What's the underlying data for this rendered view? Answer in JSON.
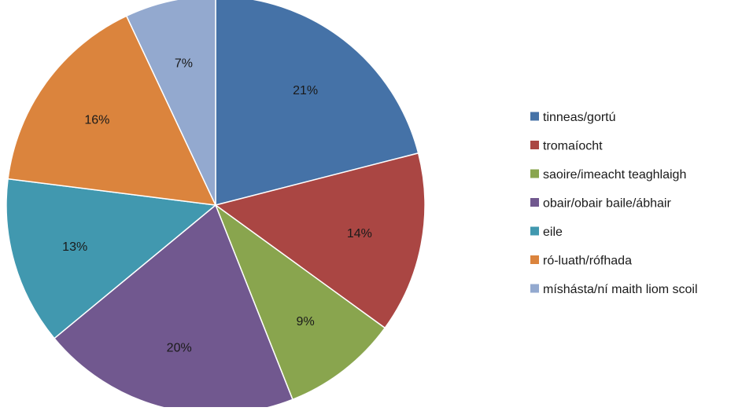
{
  "chart_data": {
    "type": "pie",
    "title": "",
    "legend_position": "right",
    "slices": [
      {
        "label": "tinneas/gortú",
        "value": 21,
        "value_label": "21%",
        "color": "#4572A7"
      },
      {
        "label": "tromaíocht",
        "value": 14,
        "value_label": "14%",
        "color": "#AA4643"
      },
      {
        "label": "saoire/imeacht teaghlaigh",
        "value": 9,
        "value_label": "9%",
        "color": "#89A54E"
      },
      {
        "label": "obair/obair baile/ábhair",
        "value": 20,
        "value_label": "20%",
        "color": "#71588F"
      },
      {
        "label": "eile",
        "value": 13,
        "value_label": "13%",
        "color": "#4198AF"
      },
      {
        "label": "ró-luath/rófhada",
        "value": 16,
        "value_label": "16%",
        "color": "#DB843D"
      },
      {
        "label": "míshásta/ní maith liom scoil",
        "value": 7,
        "value_label": "7%",
        "color": "#93A9CF"
      }
    ]
  }
}
